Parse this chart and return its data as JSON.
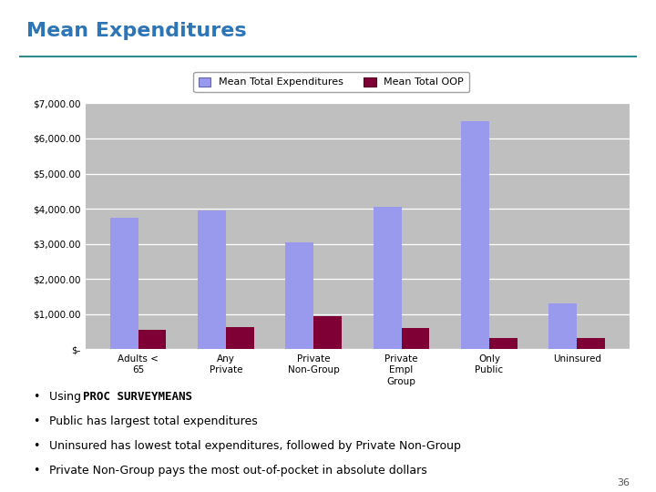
{
  "title": "Mean Expenditures",
  "categories": [
    "Adults <\n65",
    "Any\nPrivate",
    "Private\nNon-Group",
    "Private\nEmpl\nGroup",
    "Only\nPublic",
    "Uninsured"
  ],
  "mean_total": [
    3750,
    3950,
    3050,
    4050,
    6500,
    1300
  ],
  "mean_oop": [
    550,
    620,
    950,
    600,
    330,
    320
  ],
  "bar_color_total": "#9999ee",
  "bar_color_oop": "#7f0035",
  "legend_labels": [
    "Mean Total Expenditures",
    "Mean Total OOP"
  ],
  "ylim": [
    0,
    7000
  ],
  "yticks": [
    0,
    1000,
    2000,
    3000,
    4000,
    5000,
    6000,
    7000
  ],
  "ytick_labels": [
    "$-",
    "$1,000.00",
    "$2,000.00",
    "$3,000.00",
    "$4,000.00",
    "$5,000.00",
    "$6,000.00",
    "$7,000.00"
  ],
  "chart_bg": "#bfbfbf",
  "chart_outer_bg": "#efefef",
  "title_color": "#2e75b6",
  "title_underline_color": "#2e8b8b",
  "bullet_points": [
    "Using PROC SURVEYMEANS",
    "Public has largest total expenditures",
    "Uninsured has lowest total expenditures, followed by Private Non-Group",
    "Private Non-Group pays the most out-of-pocket in absolute dollars"
  ],
  "page_number": "36",
  "fig_width": 7.2,
  "fig_height": 5.4
}
